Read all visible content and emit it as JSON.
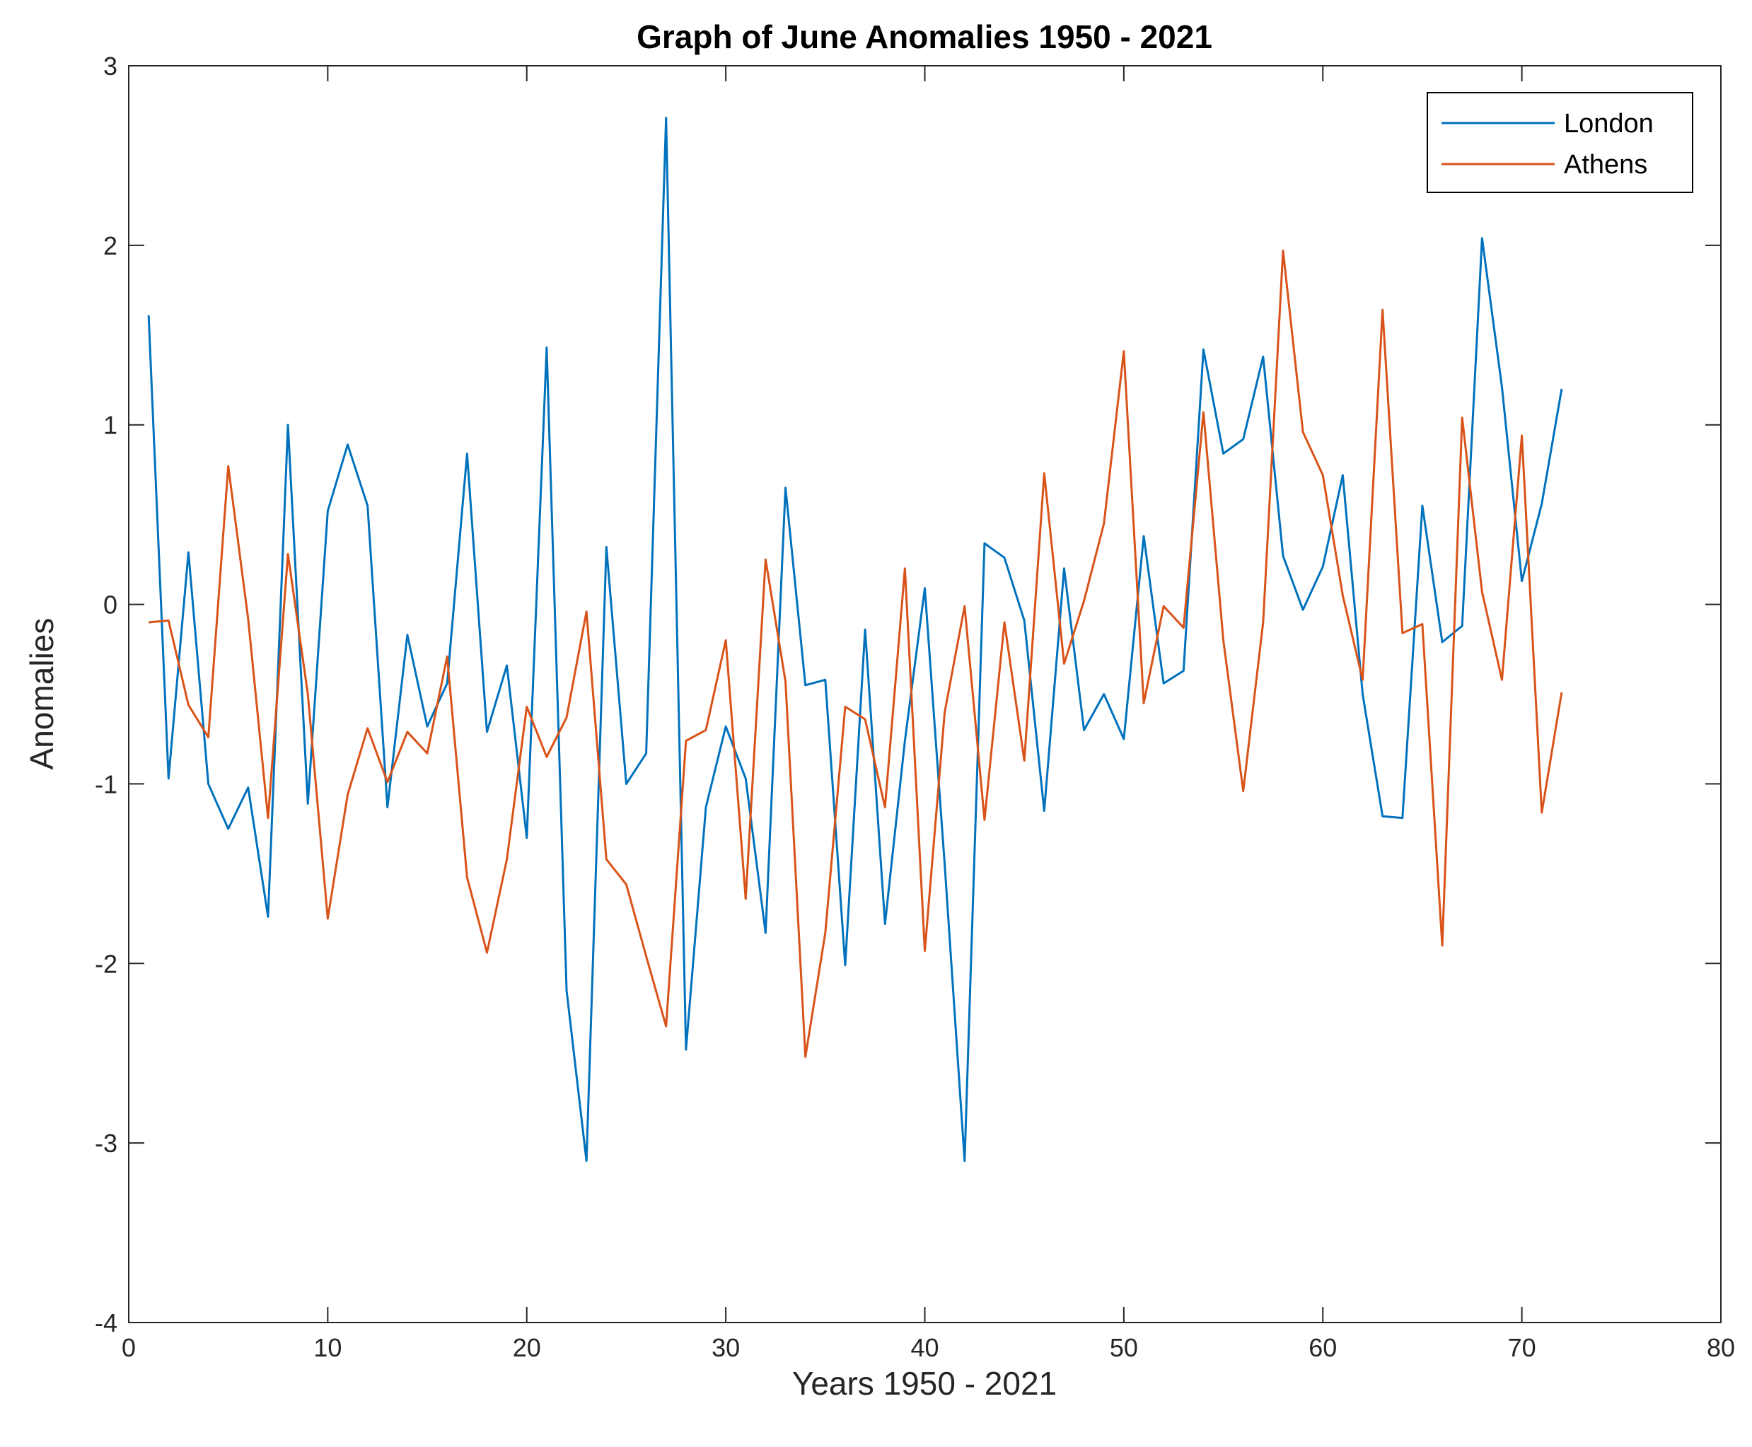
{
  "chart_data": {
    "type": "line",
    "title": "Graph of June Anomalies 1950 - 2021",
    "xlabel": "Years 1950 - 2021",
    "ylabel": "Anomalies",
    "xlim": [
      0,
      80
    ],
    "ylim": [
      -4,
      3
    ],
    "xticks": [
      0,
      10,
      20,
      30,
      40,
      50,
      60,
      70,
      80
    ],
    "yticks": [
      -4,
      -3,
      -2,
      -1,
      0,
      1,
      2,
      3
    ],
    "grid": false,
    "legend_position": "top-right",
    "series": [
      {
        "name": "London",
        "color": "#0072BD",
        "x": [
          1,
          2,
          3,
          4,
          5,
          6,
          7,
          8,
          9,
          10,
          11,
          12,
          13,
          14,
          15,
          16,
          17,
          18,
          19,
          20,
          21,
          22,
          23,
          24,
          25,
          26,
          27,
          28,
          29,
          30,
          31,
          32,
          33,
          34,
          35,
          36,
          37,
          38,
          39,
          40,
          41,
          42,
          43,
          44,
          45,
          46,
          47,
          48,
          49,
          50,
          51,
          52,
          53,
          54,
          55,
          56,
          57,
          58,
          59,
          60,
          61,
          62,
          63,
          64,
          65,
          66,
          67,
          68,
          69,
          70,
          71,
          72
        ],
        "values": [
          1.61,
          -0.97,
          0.29,
          -1.0,
          -1.25,
          -1.02,
          -1.74,
          1.0,
          -1.11,
          0.52,
          0.89,
          0.55,
          -1.13,
          -0.17,
          -0.68,
          -0.44,
          0.84,
          -0.71,
          -0.34,
          -1.3,
          1.43,
          -2.15,
          -3.1,
          0.32,
          -1.0,
          -0.83,
          2.71,
          -2.48,
          -1.13,
          -0.68,
          -0.97,
          -1.83,
          0.65,
          -0.45,
          -0.42,
          -2.01,
          -0.14,
          -1.78,
          -0.76,
          0.09,
          -1.45,
          -3.1,
          0.34,
          0.26,
          -0.09,
          -1.15,
          0.2,
          -0.7,
          -0.5,
          -0.75,
          0.38,
          -0.44,
          -0.37,
          1.42,
          0.84,
          0.92,
          1.38,
          0.27,
          -0.03,
          0.21,
          0.72,
          -0.5,
          -1.18,
          -1.19,
          0.55,
          -0.21,
          -0.12,
          2.04,
          1.21,
          0.13,
          0.56,
          1.2
        ]
      },
      {
        "name": "Athens",
        "color": "#D95319",
        "x": [
          1,
          2,
          3,
          4,
          5,
          6,
          7,
          8,
          9,
          10,
          11,
          12,
          13,
          14,
          15,
          16,
          17,
          18,
          19,
          20,
          21,
          22,
          23,
          24,
          25,
          26,
          27,
          28,
          29,
          30,
          31,
          32,
          33,
          34,
          35,
          36,
          37,
          38,
          39,
          40,
          41,
          42,
          43,
          44,
          45,
          46,
          47,
          48,
          49,
          50,
          51,
          52,
          53,
          54,
          55,
          56,
          57,
          58,
          59,
          60,
          61,
          62,
          63,
          64,
          65,
          66,
          67,
          68,
          69,
          70,
          71,
          72
        ],
        "values": [
          -0.1,
          -0.09,
          -0.56,
          -0.74,
          0.77,
          -0.08,
          -1.19,
          0.28,
          -0.5,
          -1.75,
          -1.06,
          -0.69,
          -0.99,
          -0.71,
          -0.83,
          -0.29,
          -1.52,
          -1.94,
          -1.42,
          -0.57,
          -0.85,
          -0.63,
          -0.04,
          -1.42,
          -1.56,
          -1.96,
          -2.35,
          -0.76,
          -0.7,
          -0.2,
          -1.64,
          0.25,
          -0.43,
          -2.52,
          -1.83,
          -0.57,
          -0.64,
          -1.13,
          0.2,
          -1.93,
          -0.6,
          -0.01,
          -1.2,
          -0.1,
          -0.87,
          0.73,
          -0.33,
          0.02,
          0.45,
          1.41,
          -0.55,
          -0.01,
          -0.13,
          1.07,
          -0.2,
          -1.04,
          -0.1,
          1.97,
          0.96,
          0.72,
          0.05,
          -0.42,
          1.64,
          -0.16,
          -0.11,
          -1.9,
          1.04,
          0.07,
          -0.42,
          0.94,
          -1.16,
          -0.49
        ]
      }
    ]
  }
}
